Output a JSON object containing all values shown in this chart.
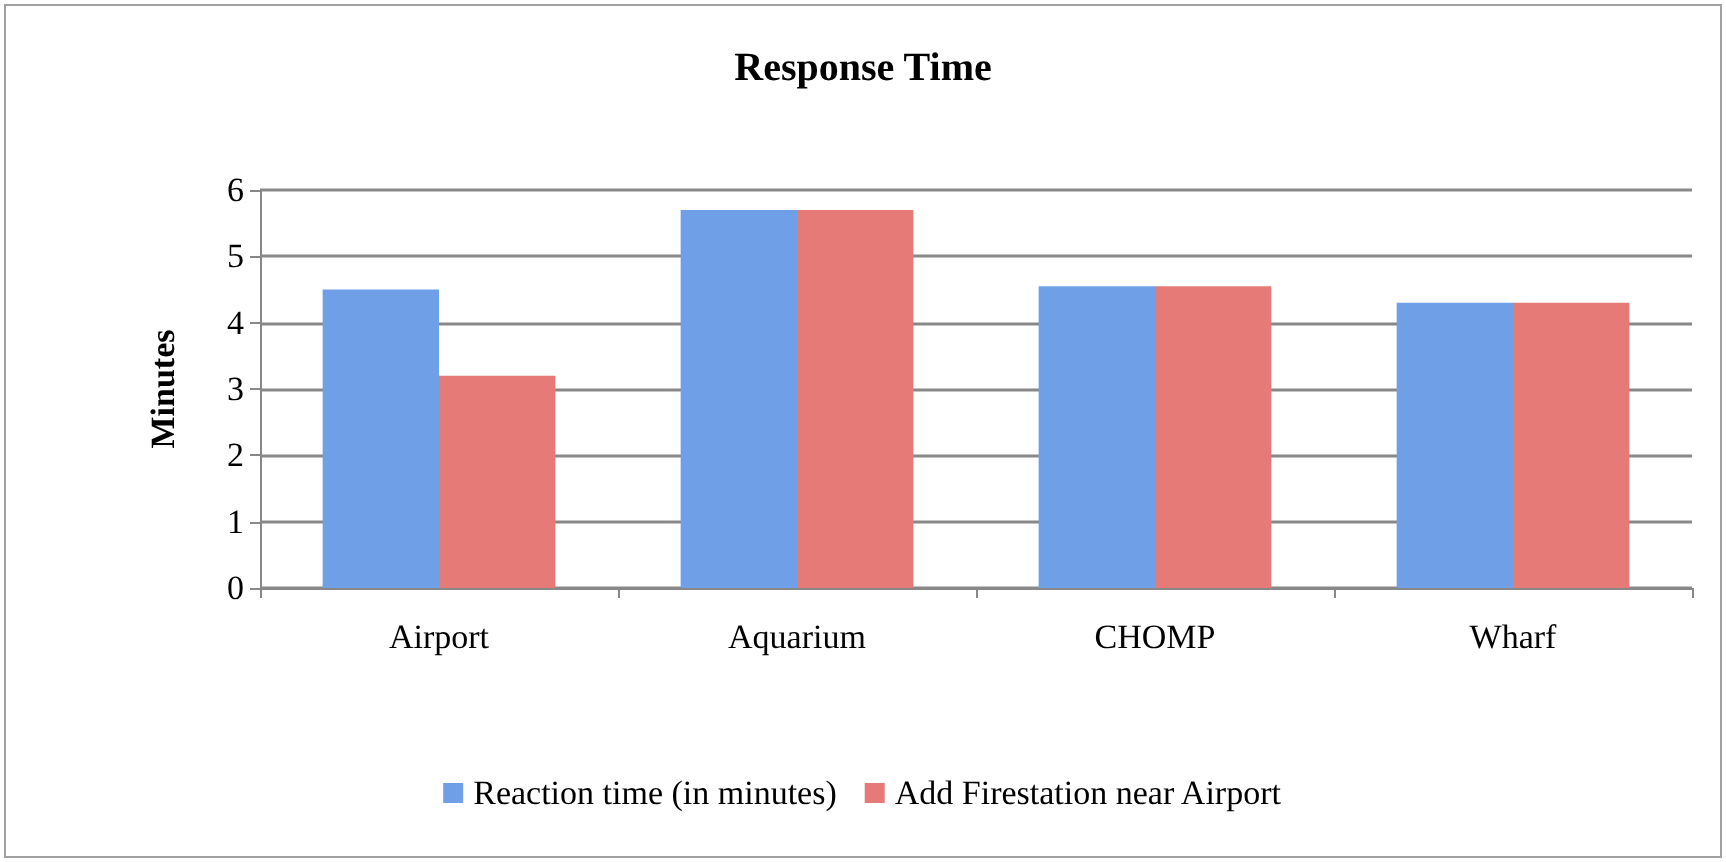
{
  "chart_data": {
    "type": "bar",
    "title": "Response Time",
    "ylabel": "Minutes",
    "categories": [
      "Airport",
      "Aquarium",
      "CHOMP",
      "Wharf"
    ],
    "series": [
      {
        "name": "Reaction time (in minutes)",
        "color": "#6f9fe6",
        "values": [
          4.5,
          5.7,
          4.55,
          4.3
        ]
      },
      {
        "name": "Add Firestation near Airport",
        "color": "#e57a76",
        "values": [
          3.2,
          5.7,
          4.55,
          4.3
        ]
      }
    ],
    "ylim": [
      0,
      6
    ],
    "yticks": [
      0,
      1,
      2,
      3,
      4,
      5,
      6
    ],
    "grid": "y",
    "legend": "bottom"
  }
}
